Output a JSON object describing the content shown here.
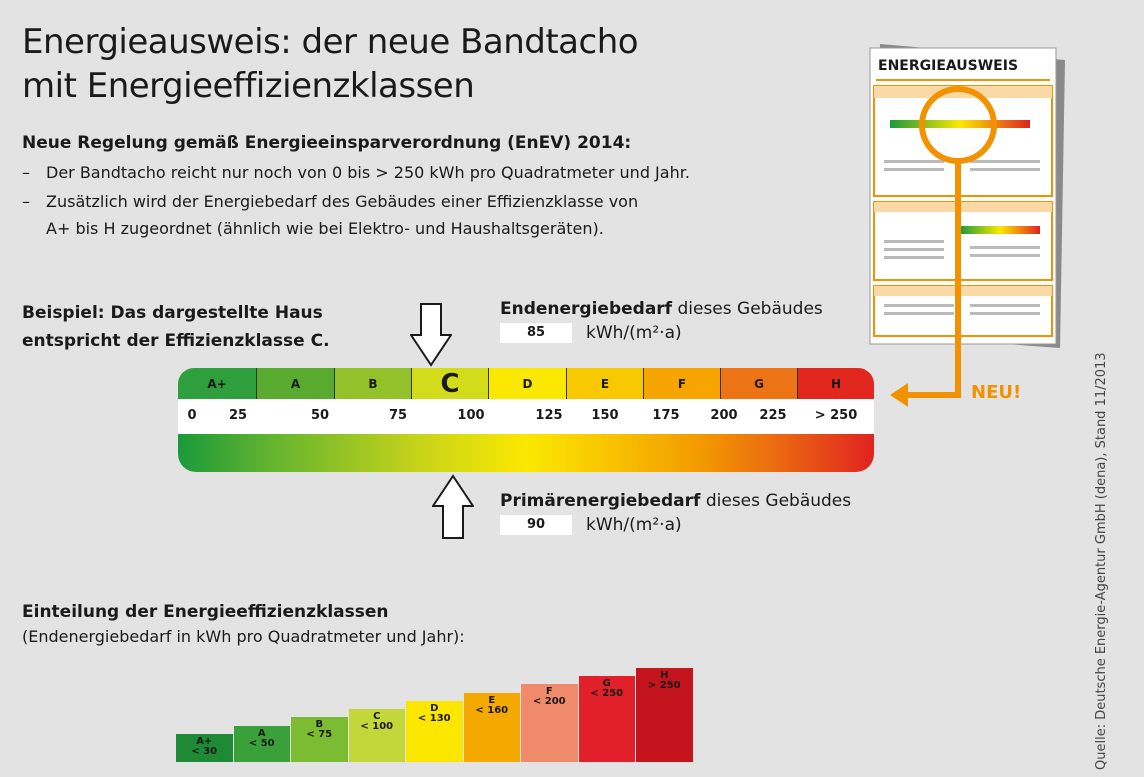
{
  "title": {
    "line1": "Energieausweis: der neue Bandtacho",
    "line2": "mit Energieeffizienzklassen"
  },
  "intro": {
    "heading": "Neue Regelung gemäß Energieeinsparverordnung (EnEV) 2014:",
    "dash": "–",
    "bullet1": "Der Bandtacho reicht nur noch von 0 bis > 250 kWh pro Quadratmeter und Jahr.",
    "bullet2": "Zusätzlich wird der Energiebedarf des Gebäudes einer Effizienzklasse von",
    "bullet2b": "A+ bis H zugeordnet (ähnlich wie bei Elektro- und Haushaltsgeräten)."
  },
  "example": {
    "line1": "Beispiel: Das dargestellte Haus",
    "line2": "entspricht der Effizienzklasse C."
  },
  "end_energy": {
    "label_bold": "Endenergiebedarf",
    "label_rest": " dieses Gebäudes",
    "value": "85",
    "unit": "kWh/(m²·a)"
  },
  "primary_energy": {
    "label_bold": "Primärenergiebedarf",
    "label_rest": " dieses Gebäudes",
    "value": "90",
    "unit": "kWh/(m²·a)"
  },
  "scale": {
    "classes": [
      {
        "label": "A+",
        "color": "#2f9e3c"
      },
      {
        "label": "A",
        "color": "#58ab2f"
      },
      {
        "label": "B",
        "color": "#92c12a"
      },
      {
        "label": "C",
        "color": "#d3dc1a"
      },
      {
        "label": "D",
        "color": "#fbe800"
      },
      {
        "label": "E",
        "color": "#f8c800"
      },
      {
        "label": "F",
        "color": "#f5a400"
      },
      {
        "label": "G",
        "color": "#ec7414"
      },
      {
        "label": "H",
        "color": "#e2271e"
      }
    ],
    "active_class": "C",
    "ticks": [
      {
        "label": "0"
      },
      {
        "label": "25"
      },
      {
        "label": "50"
      },
      {
        "label": "75"
      },
      {
        "label": "100"
      },
      {
        "label": "125"
      },
      {
        "label": "150"
      },
      {
        "label": "175"
      },
      {
        "label": "200"
      },
      {
        "label": "225"
      },
      {
        "label": "> 250"
      }
    ]
  },
  "neu_label": "NEU!",
  "document": {
    "title": "ENERGIEAUSWEIS"
  },
  "classes_section": {
    "heading": "Einteilung der Energieeffizienzklassen",
    "subheading": "(Endenergiebedarf in kWh pro Quadratmeter  und Jahr):",
    "steps": [
      {
        "cls": "A+",
        "limit": "< 30",
        "color": "#1f8a35"
      },
      {
        "cls": "A",
        "limit": "< 50",
        "color": "#3aa03a"
      },
      {
        "cls": "B",
        "limit": "< 75",
        "color": "#7cbc32"
      },
      {
        "cls": "C",
        "limit": "< 100",
        "color": "#c3d63a"
      },
      {
        "cls": "D",
        "limit": "< 130",
        "color": "#fbe600"
      },
      {
        "cls": "E",
        "limit": "< 160",
        "color": "#f4a800"
      },
      {
        "cls": "F",
        "limit": "< 200",
        "color": "#ef8a6a"
      },
      {
        "cls": "G",
        "limit": "< 250",
        "color": "#e2202a"
      },
      {
        "cls": "H",
        "limit": "> 250",
        "color": "#c4141e"
      }
    ]
  },
  "source": "Quelle: Deutsche Energie-Agentur GmbH (dena), Stand 11/2013"
}
